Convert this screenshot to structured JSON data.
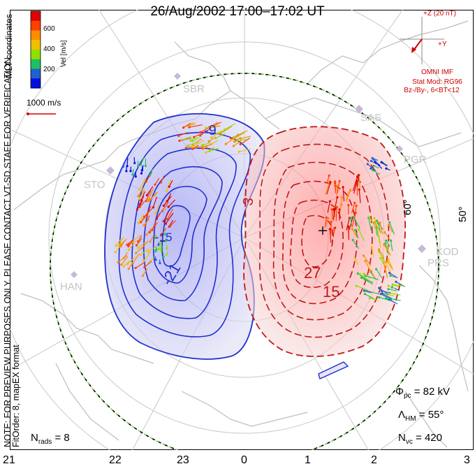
{
  "header": {
    "title": "26/Aug/2002 17:00–17:02 UT"
  },
  "colorbar": {
    "unit_label": "Vel [m/s]",
    "ticks": [
      "600",
      "400",
      "200"
    ],
    "colors": [
      "#e00000",
      "#ff4000",
      "#ff8c00",
      "#f0c000",
      "#90e000",
      "#20c060",
      "#2060d0",
      "#0010e0"
    ]
  },
  "side_text": {
    "coords": "MLT coordinates",
    "note": "NOTE: FOR PREVIEW PURPOSES ONLY. PLEASE CONTACT VT-SD STAFF FOR VERIFICATION.",
    "fit": "FitOrder: 8,  mapEX format"
  },
  "scale_vector": {
    "label": "1000 m/s"
  },
  "imf": {
    "z_label": "+Z (20 nT)",
    "y_label": "+Y",
    "source": "OMNI IMF",
    "model": "Stat Mod: RG96",
    "condition": "Bz-/By-, 6<BT<12"
  },
  "stations": [
    "SBR",
    "SAS",
    "PGR",
    "STO",
    "KOD",
    "PRS",
    "HAN"
  ],
  "latitude_labels": [
    "60°",
    "50°"
  ],
  "contour_labels": [
    "-9",
    "-21",
    "-15",
    "3",
    "27",
    "15"
  ],
  "mlt_axis": [
    "21",
    "22",
    "23",
    "0",
    "1",
    "2",
    "3"
  ],
  "stats": {
    "phi_label": "Φ",
    "phi_sub": "pc",
    "phi_value": "= 82 kV",
    "lambda_label": "Λ",
    "lambda_sub": "HM",
    "lambda_value": "= 55°",
    "nvc_label": "N",
    "nvc_sub": "vc",
    "nvc_value": "= 420",
    "nrads_label": "N",
    "nrads_sub": "rads",
    "nrads_value": "= 8"
  }
}
